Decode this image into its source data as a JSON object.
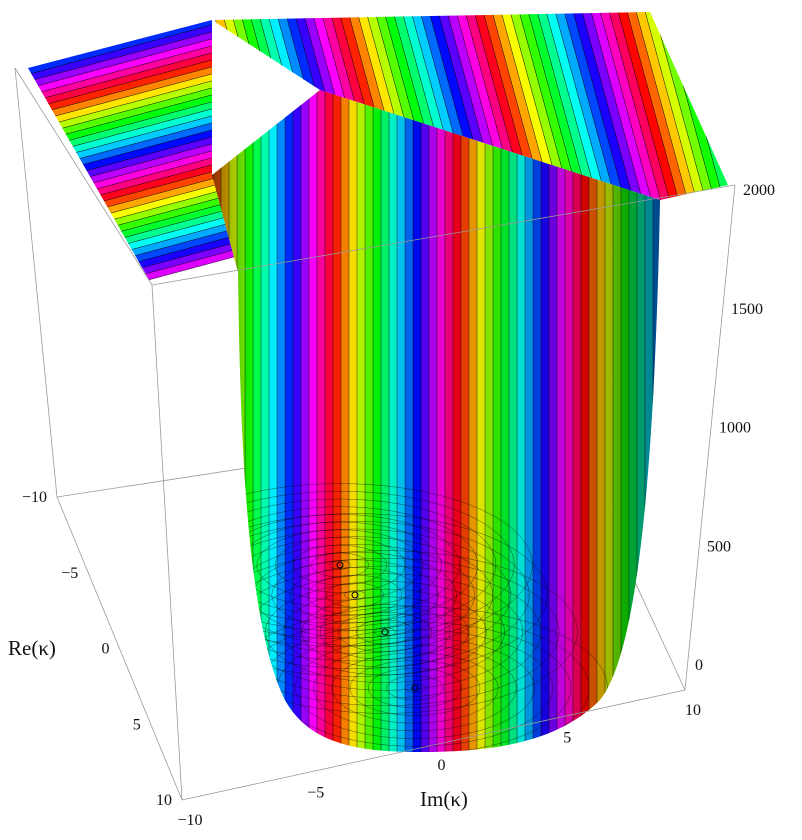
{
  "chart_data": {
    "type": "surface3d",
    "title": "",
    "xlabel": "Im(κ)",
    "ylabel": "Re(κ)",
    "zlabel": "",
    "xlim": [
      -10,
      10
    ],
    "ylim": [
      -10,
      10
    ],
    "zlim": [
      0,
      2000
    ],
    "x_ticks": [
      "−10",
      "−5",
      "0",
      "5",
      "10"
    ],
    "y_ticks": [
      "−10",
      "−5",
      "0",
      "5",
      "10"
    ],
    "z_ticks": [
      "0",
      "500",
      "1000",
      "1500",
      "2000"
    ],
    "coloring": "phase (hue) with contour lines",
    "surface_shape": "paraboloid bowl clipped at 2000, with singular points near Im(κ)≈0",
    "box": true
  }
}
